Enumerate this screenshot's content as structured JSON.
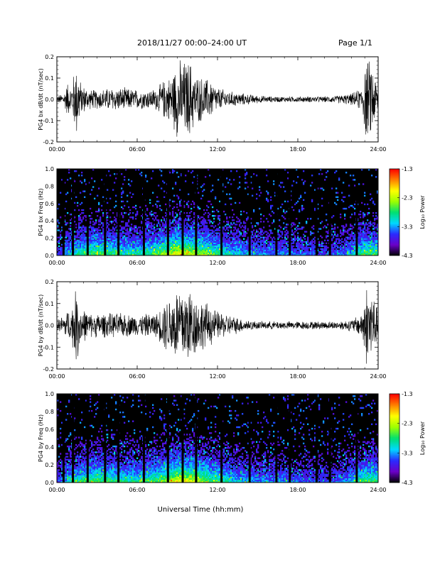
{
  "header": {
    "title": "2018/11/27  00:00–24:00 UT",
    "page": "Page 1/1"
  },
  "xaxis_label": "Universal Time (hh:mm)",
  "colorbar": {
    "label": "Log₁₀ Power",
    "ticks": [
      "-1.3",
      "-2.3",
      "-3.3",
      "-4.3"
    ],
    "range": [
      -4.3,
      -1.3
    ],
    "colors": [
      "#000000",
      "#6a00c8",
      "#2a2aff",
      "#00d8ff",
      "#00e070",
      "#9cff00",
      "#ffff00",
      "#ff8000",
      "#ff0000"
    ]
  },
  "chart_data": [
    {
      "type": "line",
      "ylabel": "PG4 bx dB/dt (nT/sec)",
      "xlim": [
        0,
        24
      ],
      "ylim": [
        -0.2,
        0.2
      ],
      "xticks": [
        "00:00",
        "06:00",
        "12:00",
        "18:00",
        "24:00"
      ],
      "yticks": [
        "0.2",
        "0.1",
        "0.0",
        "-0.1",
        "-0.2"
      ],
      "envelope": {
        "x": [
          0,
          0.5,
          0.8,
          1.0,
          1.5,
          1.8,
          2.5,
          3.0,
          4.0,
          5.0,
          6.0,
          7.0,
          7.5,
          8.0,
          8.5,
          9.0,
          9.5,
          10.0,
          10.3,
          11.0,
          11.5,
          12.0,
          13.0,
          14.0,
          15.0,
          16.0,
          17.0,
          18.0,
          19.0,
          20.0,
          21.0,
          22.0,
          22.8,
          23.0,
          23.5,
          24.0
        ],
        "amplitude": [
          0.02,
          0.03,
          0.09,
          0.06,
          0.2,
          0.08,
          0.05,
          0.05,
          0.06,
          0.06,
          0.05,
          0.05,
          0.06,
          0.1,
          0.12,
          0.2,
          0.2,
          0.2,
          0.13,
          0.11,
          0.1,
          0.06,
          0.04,
          0.03,
          0.02,
          0.015,
          0.015,
          0.015,
          0.015,
          0.015,
          0.02,
          0.03,
          0.06,
          0.2,
          0.2,
          0.06
        ]
      }
    },
    {
      "type": "heatmap",
      "ylabel": "PG4 bx Freq (Hz)",
      "xlim": [
        0,
        24
      ],
      "ylim": [
        0,
        1.0
      ],
      "xticks": [
        "00:00",
        "06:00",
        "12:00",
        "18:00",
        "24:00"
      ],
      "yticks": [
        "1.0",
        "0.8",
        "0.6",
        "0.4",
        "0.2",
        "0.0"
      ],
      "gaps_hours": [
        0.5,
        1.2,
        2.3,
        3.6,
        4.6,
        6.5,
        8.3,
        9.4,
        10.4,
        12.3,
        14.4,
        16.4,
        17.4,
        19.4,
        20.4,
        22.4
      ]
    },
    {
      "type": "line",
      "ylabel": "PG4 by dB/dt (nT/sec)",
      "xlim": [
        0,
        24
      ],
      "ylim": [
        -0.2,
        0.2
      ],
      "xticks": [
        "00:00",
        "06:00",
        "12:00",
        "18:00",
        "24:00"
      ],
      "yticks": [
        "0.2",
        "0.1",
        "0.0",
        "-0.1",
        "-0.2"
      ],
      "envelope": {
        "x": [
          0,
          0.5,
          0.8,
          1.0,
          1.5,
          1.8,
          2.5,
          3.0,
          4.0,
          5.0,
          6.0,
          7.0,
          7.5,
          8.0,
          8.5,
          9.0,
          9.5,
          10.0,
          10.3,
          11.0,
          11.5,
          12.0,
          13.0,
          14.0,
          15.0,
          16.0,
          17.0,
          18.0,
          19.0,
          20.0,
          21.0,
          22.0,
          22.8,
          23.0,
          23.5,
          24.0
        ],
        "amplitude": [
          0.03,
          0.05,
          0.08,
          0.07,
          0.2,
          0.09,
          0.06,
          0.06,
          0.06,
          0.06,
          0.05,
          0.06,
          0.06,
          0.12,
          0.15,
          0.2,
          0.2,
          0.2,
          0.15,
          0.12,
          0.1,
          0.07,
          0.05,
          0.03,
          0.02,
          0.02,
          0.02,
          0.02,
          0.02,
          0.02,
          0.02,
          0.03,
          0.06,
          0.2,
          0.2,
          0.06
        ]
      }
    },
    {
      "type": "heatmap",
      "ylabel": "PG4 by Freq (Hz)",
      "xlim": [
        0,
        24
      ],
      "ylim": [
        0,
        1.0
      ],
      "xticks": [
        "00:00",
        "06:00",
        "12:00",
        "18:00",
        "24:00"
      ],
      "yticks": [
        "1.0",
        "0.8",
        "0.6",
        "0.4",
        "0.2",
        "0.0"
      ],
      "gaps_hours": [
        0.5,
        1.2,
        2.3,
        3.6,
        4.6,
        6.5,
        8.3,
        9.4,
        10.4,
        12.3,
        14.4,
        16.4,
        17.4,
        19.4,
        20.4,
        22.4
      ]
    }
  ]
}
